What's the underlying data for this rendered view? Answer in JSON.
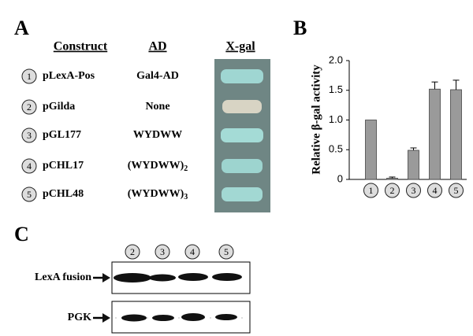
{
  "panel_a": {
    "label": "A",
    "headers": [
      "Construct",
      "AD",
      "X-gal"
    ],
    "rows": [
      {
        "number": "1",
        "construct": "pLexA-Pos",
        "ad": "Gal4-AD"
      },
      {
        "number": "2",
        "construct": "pGilda",
        "ad": "None"
      },
      {
        "number": "3",
        "construct": "pGL177",
        "ad": "WYDWW"
      },
      {
        "number": "4",
        "construct": "pCHL17",
        "ad": "(WYDWW)",
        "ad_sub": "2"
      },
      {
        "number": "5",
        "construct": "pCHL48",
        "ad": "(WYDWW)",
        "ad_sub": "3"
      }
    ]
  },
  "chart_data": {
    "type": "bar",
    "label": "B",
    "y_label": "Relative β-gal activity",
    "categories": [
      "1",
      "2",
      "3",
      "4",
      "5"
    ],
    "values": [
      1.0,
      0.02,
      0.49,
      1.52,
      1.51
    ],
    "errors": [
      null,
      0.02,
      0.04,
      0.12,
      0.16
    ],
    "color": "#9a9a9a",
    "ylim": [
      0,
      2
    ],
    "yticks": [
      0,
      0.5,
      {
        "value": 1,
        "label": "1.0"
      },
      1.5,
      {
        "value": 2,
        "label": "2.0"
      }
    ]
  },
  "panel_c": {
    "label": "C",
    "lanes": [
      "2",
      "3",
      "4",
      "5"
    ],
    "blots": [
      "LexA fusion",
      "PGK"
    ]
  }
}
